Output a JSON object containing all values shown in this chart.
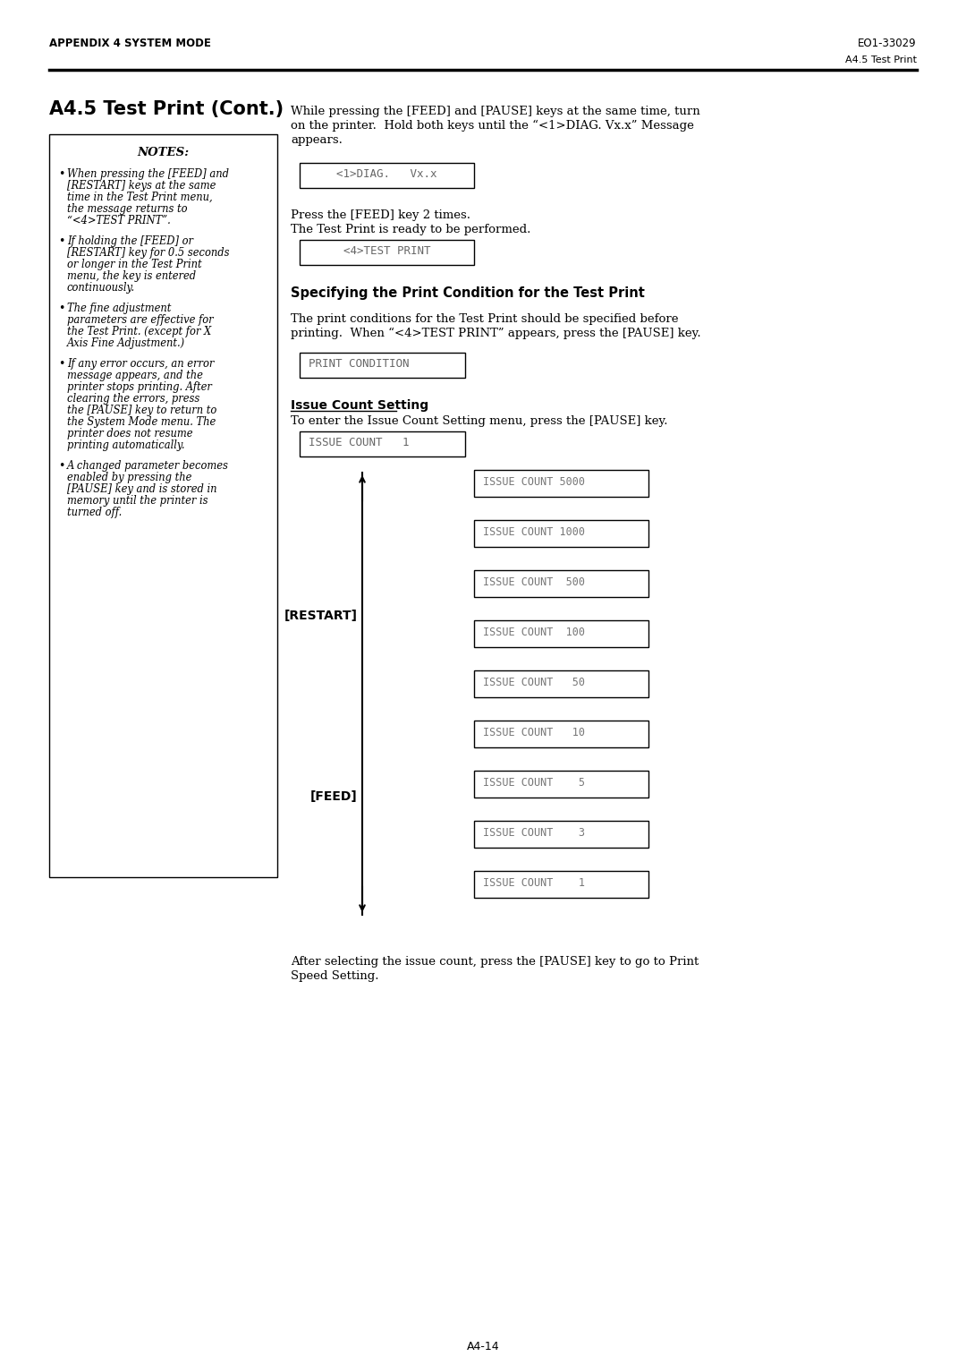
{
  "page_title_left": "APPENDIX 4 SYSTEM MODE",
  "page_title_right": "EO1-33029",
  "page_subtitle_right": "A4.5 Test Print",
  "section_title": "A4.5 Test Print (Cont.)",
  "page_number": "A4-14",
  "diag_box": "<1>DIAG.   Vx.x",
  "press_feed_text1": "Press the [FEED] key 2 times.",
  "press_feed_text2": "The Test Print is ready to be performed.",
  "test_print_box": "<4>TEST PRINT",
  "section2_title": "Specifying the Print Condition for the Test Print",
  "print_condition_box": "PRINT CONDITION",
  "issue_count_title": "Issue Count Setting",
  "issue_count_text": "To enter the Issue Count Setting menu, press the [PAUSE] key.",
  "issue_count_box": "ISSUE COUNT   1",
  "issue_count_items": [
    "ISSUE COUNT 5000",
    "ISSUE COUNT 1000",
    "ISSUE COUNT  500",
    "ISSUE COUNT  100",
    "ISSUE COUNT   50",
    "ISSUE COUNT   10",
    "ISSUE COUNT    5",
    "ISSUE COUNT    3",
    "ISSUE COUNT    1"
  ],
  "restart_label": "[RESTART]",
  "feed_label": "[FEED]",
  "after_text1": "After selecting the issue count, press the [PAUSE] key to go to Print",
  "after_text2": "Speed Setting.",
  "notes_title": "NOTES:",
  "notes_items": [
    "When pressing the [FEED] and [RESTART] keys at the same time in the Test Print menu, the message returns to “<4>TEST PRINT”.",
    "If holding the [FEED] or [RESTART] key for 0.5 seconds or longer in the Test Print menu, the key is entered continuously.",
    "The fine adjustment parameters are effective for the Test Print. (except for X Axis Fine Adjustment.)",
    "If any error occurs, an error message appears, and the printer stops printing. After clearing the errors, press the [PAUSE] key to return to the System Mode menu. The printer does not resume printing automatically.",
    "A changed parameter becomes enabled by pressing the [PAUSE] key and is stored in memory until the printer is turned off."
  ],
  "intro_lines": [
    "While pressing the [FEED] and [PAUSE] keys at the same time, turn",
    "on the printer.  Hold both keys until the “<1>DIAG. Vx.x” Message",
    "appears."
  ],
  "spec_lines": [
    "The print conditions for the Test Print should be specified before",
    "printing.  When “<4>TEST PRINT” appears, press the [PAUSE] key."
  ],
  "bg_color": "#ffffff"
}
